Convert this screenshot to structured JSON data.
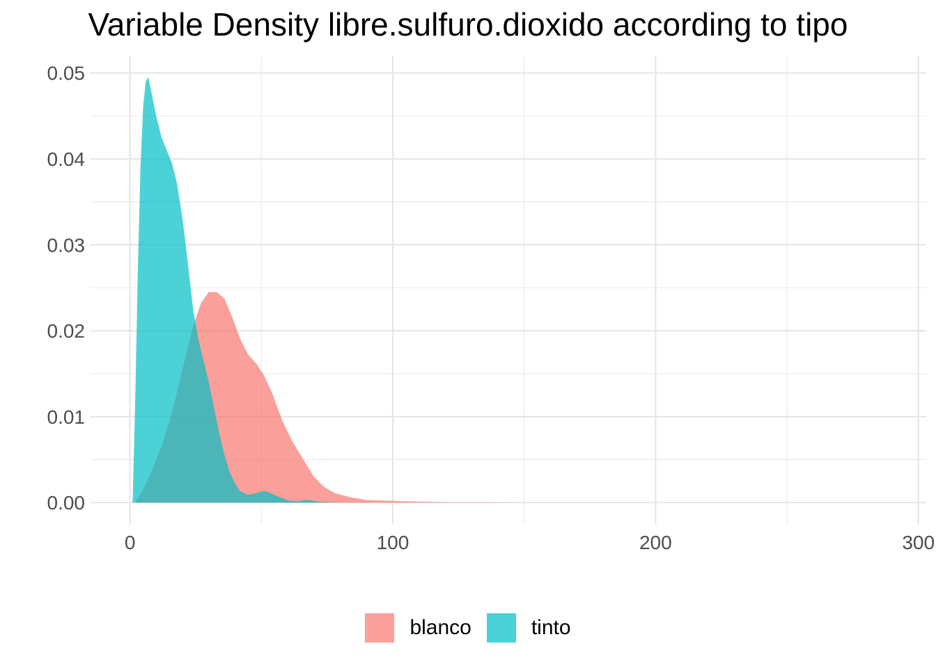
{
  "chart_data": {
    "type": "area",
    "title": "Variable Density libre.sulfuro.dioxido according to tipo",
    "xlabel": "",
    "ylabel": "",
    "xlim": [
      -15,
      303
    ],
    "ylim": [
      -0.0025,
      0.052
    ],
    "x_ticks": [
      0,
      100,
      200,
      300
    ],
    "x_tick_labels": [
      "0",
      "100",
      "200",
      "300"
    ],
    "y_ticks": [
      0,
      0.01,
      0.02,
      0.03,
      0.04,
      0.05
    ],
    "y_tick_labels": [
      "0.00",
      "0.01",
      "0.02",
      "0.03",
      "0.04",
      "0.05"
    ],
    "grid": true,
    "legend_position": "bottom",
    "series": [
      {
        "name": "blanco",
        "color": "#F8766D",
        "opacity": 0.7,
        "points": [
          [
            2,
            0.0
          ],
          [
            5,
            0.0015
          ],
          [
            8,
            0.0035
          ],
          [
            12,
            0.0065
          ],
          [
            16,
            0.0105
          ],
          [
            20,
            0.0155
          ],
          [
            24,
            0.0205
          ],
          [
            27,
            0.0232
          ],
          [
            30,
            0.0245
          ],
          [
            33,
            0.0245
          ],
          [
            36,
            0.0237
          ],
          [
            39,
            0.0215
          ],
          [
            42,
            0.019
          ],
          [
            45,
            0.0172
          ],
          [
            48,
            0.0162
          ],
          [
            51,
            0.0148
          ],
          [
            54,
            0.0128
          ],
          [
            58,
            0.0095
          ],
          [
            62,
            0.007
          ],
          [
            66,
            0.005
          ],
          [
            70,
            0.003
          ],
          [
            74,
            0.0018
          ],
          [
            78,
            0.0011
          ],
          [
            84,
            0.0006
          ],
          [
            90,
            0.0003
          ],
          [
            100,
            0.0002
          ],
          [
            110,
            0.0001
          ],
          [
            120,
            4e-05
          ],
          [
            130,
            2e-05
          ],
          [
            150,
            0.0
          ],
          [
            200,
            0.0
          ],
          [
            289,
            0.0
          ]
        ]
      },
      {
        "name": "tinto",
        "color": "#00BFC4",
        "opacity": 0.7,
        "points": [
          [
            1,
            0.0
          ],
          [
            2,
            0.012
          ],
          [
            3,
            0.027
          ],
          [
            4,
            0.039
          ],
          [
            5,
            0.046
          ],
          [
            6,
            0.049
          ],
          [
            7,
            0.0495
          ],
          [
            8,
            0.048
          ],
          [
            10,
            0.045
          ],
          [
            12,
            0.0425
          ],
          [
            14,
            0.041
          ],
          [
            16,
            0.0395
          ],
          [
            18,
            0.037
          ],
          [
            20,
            0.033
          ],
          [
            22,
            0.028
          ],
          [
            24,
            0.0225
          ],
          [
            26,
            0.019
          ],
          [
            28,
            0.0165
          ],
          [
            30,
            0.014
          ],
          [
            32,
            0.011
          ],
          [
            34,
            0.008
          ],
          [
            36,
            0.0055
          ],
          [
            38,
            0.0035
          ],
          [
            40,
            0.0022
          ],
          [
            42,
            0.0013
          ],
          [
            45,
            0.0009
          ],
          [
            48,
            0.0011
          ],
          [
            50,
            0.0013
          ],
          [
            52,
            0.0013
          ],
          [
            55,
            0.0009
          ],
          [
            58,
            0.0005
          ],
          [
            61,
            0.0002
          ],
          [
            64,
            0.00015
          ],
          [
            66,
            0.0003
          ],
          [
            68,
            0.0003
          ],
          [
            72,
            0.0001
          ],
          [
            80,
            3e-05
          ],
          [
            72,
            0.0
          ]
        ]
      }
    ]
  }
}
